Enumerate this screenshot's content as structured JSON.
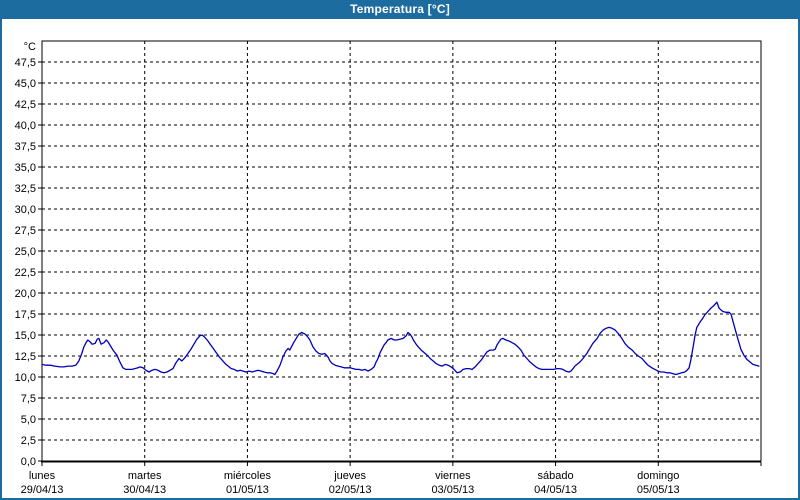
{
  "window": {
    "title": "Temperatura [°C]"
  },
  "colors": {
    "titlebar": "#1d6c9f",
    "window_border": "#1d6c9f",
    "plot_background": "#ffffff",
    "grid": "#000000",
    "line": "#0000bb",
    "title_text": "#ffffff"
  },
  "chart_data": {
    "type": "line",
    "title": "Temperatura [°C]",
    "grid": "dashed",
    "legend": "none",
    "y_axis": {
      "unit_label": "°C",
      "min": 0,
      "max": 50,
      "tick_step": 2.5,
      "tick_labels": [
        "0,0",
        "2,5",
        "5,0",
        "7,5",
        "10,0",
        "12,5",
        "15,0",
        "17,5",
        "20,0",
        "22,5",
        "25,0",
        "27,5",
        "30,0",
        "32,5",
        "35,0",
        "37,5",
        "40,0",
        "42,5",
        "45,0",
        "47,5"
      ]
    },
    "x_axis": {
      "range_hours": [
        0,
        168
      ],
      "days": [
        {
          "name": "lunes",
          "date": "29/04/13"
        },
        {
          "name": "martes",
          "date": "30/04/13"
        },
        {
          "name": "miércoles",
          "date": "01/05/13"
        },
        {
          "name": "jueves",
          "date": "02/05/13"
        },
        {
          "name": "viernes",
          "date": "03/05/13"
        },
        {
          "name": "sábado",
          "date": "04/05/13"
        },
        {
          "name": "domingo",
          "date": "05/05/13"
        }
      ]
    },
    "series": [
      {
        "name": "Temperatura",
        "color": "#0000bb",
        "points_hours_degC": [
          [
            0,
            11.5
          ],
          [
            0.9,
            11.4
          ],
          [
            1.9,
            11.4
          ],
          [
            3,
            11.3
          ],
          [
            4.2,
            11.2
          ],
          [
            5.1,
            11.2
          ],
          [
            6.1,
            11.3
          ],
          [
            7,
            11.3
          ],
          [
            7.9,
            11.4
          ],
          [
            8.6,
            11.9
          ],
          [
            9.3,
            12.8
          ],
          [
            9.8,
            13.6
          ],
          [
            10.3,
            14.1
          ],
          [
            10.7,
            14.4
          ],
          [
            11.2,
            14.2
          ],
          [
            11.7,
            13.9
          ],
          [
            12.4,
            14.0
          ],
          [
            12.9,
            14.5
          ],
          [
            13.3,
            14.6
          ],
          [
            13.8,
            13.9
          ],
          [
            14.5,
            14.1
          ],
          [
            15,
            14.4
          ],
          [
            15.4,
            14.2
          ],
          [
            15.9,
            13.8
          ],
          [
            16.6,
            13.2
          ],
          [
            17.5,
            12.6
          ],
          [
            18.2,
            11.8
          ],
          [
            18.9,
            11.1
          ],
          [
            19.6,
            10.9
          ],
          [
            20.3,
            10.9
          ],
          [
            21,
            10.9
          ],
          [
            21.7,
            11.0
          ],
          [
            22.4,
            11.1
          ],
          [
            22.9,
            11.2
          ],
          [
            23.6,
            11.1
          ],
          [
            24.3,
            10.8
          ],
          [
            25,
            10.6
          ],
          [
            25.7,
            10.8
          ],
          [
            26.4,
            10.9
          ],
          [
            27.1,
            10.8
          ],
          [
            27.8,
            10.6
          ],
          [
            28.5,
            10.5
          ],
          [
            29.2,
            10.6
          ],
          [
            29.9,
            10.8
          ],
          [
            30.6,
            11.0
          ],
          [
            31.3,
            11.7
          ],
          [
            32,
            12.2
          ],
          [
            32.7,
            11.9
          ],
          [
            33.4,
            12.3
          ],
          [
            34.1,
            12.8
          ],
          [
            34.8,
            13.3
          ],
          [
            35.5,
            13.9
          ],
          [
            36.2,
            14.5
          ],
          [
            36.9,
            14.9
          ],
          [
            37.4,
            15.0
          ],
          [
            37.9,
            14.8
          ],
          [
            38.6,
            14.4
          ],
          [
            39.3,
            13.9
          ],
          [
            40,
            13.4
          ],
          [
            40.7,
            12.9
          ],
          [
            41.4,
            12.4
          ],
          [
            42.1,
            12.0
          ],
          [
            42.8,
            11.6
          ],
          [
            43.5,
            11.3
          ],
          [
            44.2,
            11.0
          ],
          [
            44.9,
            10.9
          ],
          [
            45.6,
            10.7
          ],
          [
            46.3,
            10.8
          ],
          [
            47,
            10.7
          ],
          [
            47.7,
            10.6
          ],
          [
            48.4,
            10.7
          ],
          [
            49.1,
            10.6
          ],
          [
            49.8,
            10.7
          ],
          [
            50.5,
            10.8
          ],
          [
            51.2,
            10.7
          ],
          [
            51.9,
            10.6
          ],
          [
            52.6,
            10.5
          ],
          [
            53.3,
            10.5
          ],
          [
            54,
            10.4
          ],
          [
            54.4,
            10.3
          ],
          [
            54.9,
            10.7
          ],
          [
            55.6,
            11.4
          ],
          [
            56.3,
            12.4
          ],
          [
            57,
            13.1
          ],
          [
            57.5,
            13.4
          ],
          [
            57.9,
            13.2
          ],
          [
            58.7,
            14.0
          ],
          [
            59.4,
            14.6
          ],
          [
            60,
            15.1
          ],
          [
            60.7,
            15.3
          ],
          [
            61.5,
            15.1
          ],
          [
            62.2,
            14.7
          ],
          [
            62.6,
            14.4
          ],
          [
            63.3,
            13.6
          ],
          [
            64,
            13.1
          ],
          [
            64.7,
            12.8
          ],
          [
            65.4,
            12.7
          ],
          [
            66.1,
            12.8
          ],
          [
            66.8,
            12.4
          ],
          [
            67.3,
            11.9
          ],
          [
            67.8,
            11.6
          ],
          [
            68.5,
            11.4
          ],
          [
            69.2,
            11.3
          ],
          [
            69.9,
            11.2
          ],
          [
            70.6,
            11.1
          ],
          [
            71.3,
            11.1
          ],
          [
            72,
            11.1
          ],
          [
            72.7,
            11.0
          ],
          [
            73.4,
            10.9
          ],
          [
            74.1,
            10.9
          ],
          [
            74.8,
            10.8
          ],
          [
            75.5,
            10.9
          ],
          [
            76.2,
            10.7
          ],
          [
            76.9,
            10.9
          ],
          [
            77.6,
            11.2
          ],
          [
            78,
            11.7
          ],
          [
            78.5,
            12.2
          ],
          [
            79,
            12.9
          ],
          [
            79.4,
            13.3
          ],
          [
            79.9,
            13.8
          ],
          [
            80.4,
            14.1
          ],
          [
            80.8,
            14.4
          ],
          [
            81.6,
            14.6
          ],
          [
            82.3,
            14.4
          ],
          [
            82.9,
            14.4
          ],
          [
            83.6,
            14.5
          ],
          [
            84.4,
            14.6
          ],
          [
            85.1,
            14.9
          ],
          [
            85.5,
            15.3
          ],
          [
            86,
            15.1
          ],
          [
            86.4,
            14.8
          ],
          [
            86.9,
            14.3
          ],
          [
            87.4,
            13.9
          ],
          [
            87.9,
            13.6
          ],
          [
            88.6,
            13.2
          ],
          [
            89.3,
            12.9
          ],
          [
            90,
            12.6
          ],
          [
            90.7,
            12.2
          ],
          [
            91.4,
            11.9
          ],
          [
            92.1,
            11.6
          ],
          [
            92.8,
            11.4
          ],
          [
            93.5,
            11.3
          ],
          [
            94.2,
            11.5
          ],
          [
            94.9,
            11.4
          ],
          [
            95.6,
            11.2
          ],
          [
            96.3,
            10.9
          ],
          [
            97,
            10.5
          ],
          [
            97.7,
            10.6
          ],
          [
            98.4,
            10.9
          ],
          [
            99.1,
            11.0
          ],
          [
            99.8,
            11.0
          ],
          [
            100.5,
            10.9
          ],
          [
            101.2,
            11.2
          ],
          [
            101.9,
            11.6
          ],
          [
            102.6,
            12.0
          ],
          [
            103.3,
            12.5
          ],
          [
            104,
            13.0
          ],
          [
            104.7,
            13.2
          ],
          [
            105.4,
            13.2
          ],
          [
            105.9,
            13.3
          ],
          [
            106.3,
            13.8
          ],
          [
            106.8,
            14.2
          ],
          [
            107.2,
            14.5
          ],
          [
            107.7,
            14.6
          ],
          [
            108.4,
            14.4
          ],
          [
            109.1,
            14.3
          ],
          [
            109.8,
            14.1
          ],
          [
            110.5,
            13.9
          ],
          [
            111.2,
            13.6
          ],
          [
            111.9,
            13.2
          ],
          [
            112.6,
            12.6
          ],
          [
            113.3,
            12.2
          ],
          [
            114,
            11.8
          ],
          [
            114.7,
            11.5
          ],
          [
            115.4,
            11.2
          ],
          [
            116.1,
            11.0
          ],
          [
            116.8,
            10.9
          ],
          [
            117.5,
            10.9
          ],
          [
            118.2,
            10.9
          ],
          [
            118.9,
            10.9
          ],
          [
            119.6,
            10.9
          ],
          [
            120.3,
            11.0
          ],
          [
            121,
            11.0
          ],
          [
            121.7,
            10.9
          ],
          [
            122.4,
            10.7
          ],
          [
            123.1,
            10.6
          ],
          [
            123.6,
            10.7
          ],
          [
            124.1,
            11.0
          ],
          [
            124.5,
            11.3
          ],
          [
            125,
            11.5
          ],
          [
            125.7,
            11.8
          ],
          [
            126.4,
            12.2
          ],
          [
            127.3,
            12.8
          ],
          [
            128,
            13.4
          ],
          [
            128.7,
            14.0
          ],
          [
            129.7,
            14.6
          ],
          [
            130.4,
            15.2
          ],
          [
            131.1,
            15.6
          ],
          [
            131.8,
            15.8
          ],
          [
            132.5,
            15.9
          ],
          [
            133.2,
            15.8
          ],
          [
            133.9,
            15.6
          ],
          [
            134.6,
            15.2
          ],
          [
            135.5,
            14.6
          ],
          [
            136.2,
            14.0
          ],
          [
            136.9,
            13.6
          ],
          [
            137.9,
            13.2
          ],
          [
            138.6,
            12.8
          ],
          [
            139.3,
            12.5
          ],
          [
            140.2,
            12.2
          ],
          [
            140.9,
            11.8
          ],
          [
            141.6,
            11.4
          ],
          [
            142.5,
            11.1
          ],
          [
            143.2,
            10.9
          ],
          [
            143.9,
            10.7
          ],
          [
            144.6,
            10.6
          ],
          [
            145.3,
            10.6
          ],
          [
            146,
            10.5
          ],
          [
            146.7,
            10.5
          ],
          [
            147.4,
            10.4
          ],
          [
            148.1,
            10.3
          ],
          [
            148.8,
            10.4
          ],
          [
            149.5,
            10.5
          ],
          [
            150.2,
            10.6
          ],
          [
            150.7,
            10.8
          ],
          [
            151.2,
            11.1
          ],
          [
            151.6,
            12.0
          ],
          [
            152.1,
            13.5
          ],
          [
            152.6,
            15.0
          ],
          [
            153,
            15.9
          ],
          [
            153.7,
            16.5
          ],
          [
            154.4,
            17.0
          ],
          [
            154.9,
            17.4
          ],
          [
            155.6,
            17.8
          ],
          [
            156.3,
            18.2
          ],
          [
            157,
            18.5
          ],
          [
            157.5,
            18.8
          ],
          [
            157.7,
            18.9
          ],
          [
            158.2,
            18.2
          ],
          [
            158.6,
            18.0
          ],
          [
            159.1,
            17.8
          ],
          [
            159.8,
            17.7
          ],
          [
            160.5,
            17.7
          ],
          [
            161,
            17.5
          ],
          [
            161.4,
            16.7
          ],
          [
            161.9,
            15.8
          ],
          [
            162.4,
            14.9
          ],
          [
            162.9,
            14.0
          ],
          [
            163.3,
            13.3
          ],
          [
            164,
            12.6
          ],
          [
            164.7,
            12.1
          ],
          [
            165.4,
            11.8
          ],
          [
            166.1,
            11.5
          ],
          [
            166.8,
            11.4
          ],
          [
            167.5,
            11.3
          ]
        ]
      }
    ]
  }
}
